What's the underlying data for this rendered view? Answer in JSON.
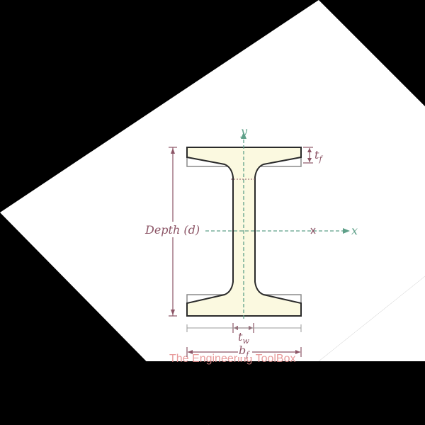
{
  "labels": {
    "y_axis": "y",
    "x_axis": "x",
    "depth": "Depth (d)",
    "flange_thickness": "t",
    "flange_thickness_sub": "f",
    "web_thickness": "t",
    "web_thickness_sub": "w",
    "flange_width": "b",
    "flange_width_sub": "f"
  },
  "watermark": "The Engineering ToolBox",
  "colors": {
    "section_fill": "#fbf9e0",
    "section_outline": "#2a2a2a",
    "axis": "#5fa089",
    "dimension": "#8c5566",
    "background": "#000000",
    "canvas": "#ffffff",
    "watermark": "#e58a8a"
  }
}
